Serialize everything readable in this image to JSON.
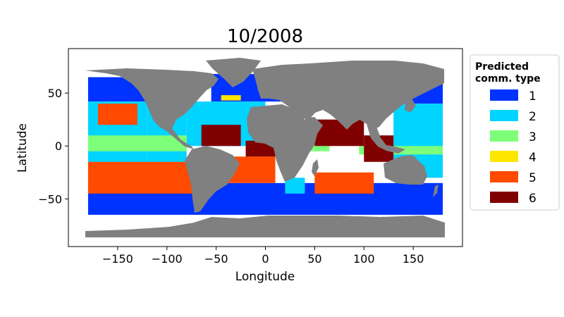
{
  "figure": {
    "title": "10/2008",
    "xlabel": "Longitude",
    "ylabel": "Latitude",
    "xlim": [
      -200,
      200
    ],
    "ylim": [
      -95,
      92
    ],
    "xticks": [
      -150,
      -100,
      -50,
      0,
      50,
      100,
      150
    ],
    "xtick_labels": [
      "−150",
      "−100",
      "−50",
      "0",
      "50",
      "100",
      "150"
    ],
    "yticks": [
      50,
      0,
      -50
    ],
    "ytick_labels": [
      "50",
      "0",
      "−50"
    ]
  },
  "legend": {
    "title_line1": "Predicted",
    "title_line2": "comm. type",
    "placement": "outside-right",
    "items": [
      {
        "label": "1",
        "color": "#0033ff"
      },
      {
        "label": "2",
        "color": "#00d4ff"
      },
      {
        "label": "3",
        "color": "#7dff7a"
      },
      {
        "label": "4",
        "color": "#ffe600"
      },
      {
        "label": "5",
        "color": "#ff4a00"
      },
      {
        "label": "6",
        "color": "#800000"
      }
    ]
  },
  "colors": {
    "land": "#808080",
    "unclassified": "#ffffff"
  },
  "chart_data": {
    "type": "heatmap",
    "title": "10/2008",
    "xlabel": "Longitude",
    "ylabel": "Latitude",
    "xlim": [
      -200,
      200
    ],
    "ylim": [
      -95,
      92
    ],
    "grid": false,
    "legend_placement": "outside-right",
    "classes": [
      "1",
      "2",
      "3",
      "4",
      "5",
      "6"
    ],
    "regions": [
      {
        "class": "1",
        "lon": [
          -180,
          180
        ],
        "lat": [
          -65,
          -35
        ]
      },
      {
        "class": "1",
        "lon": [
          -180,
          -120
        ],
        "lat": [
          42,
          65
        ]
      },
      {
        "class": "1",
        "lon": [
          -55,
          20
        ],
        "lat": [
          42,
          68
        ]
      },
      {
        "class": "1",
        "lon": [
          135,
          180
        ],
        "lat": [
          40,
          65
        ]
      },
      {
        "class": "2",
        "lon": [
          -180,
          -120
        ],
        "lat": [
          -35,
          42
        ]
      },
      {
        "class": "2",
        "lon": [
          -120,
          -80
        ],
        "lat": [
          -35,
          45
        ]
      },
      {
        "class": "2",
        "lon": [
          -80,
          0
        ],
        "lat": [
          0,
          42
        ]
      },
      {
        "class": "2",
        "lon": [
          130,
          180
        ],
        "lat": [
          -30,
          40
        ]
      },
      {
        "class": "2",
        "lon": [
          20,
          40
        ],
        "lat": [
          -45,
          -30
        ]
      },
      {
        "class": "3",
        "lon": [
          -180,
          -80
        ],
        "lat": [
          -5,
          10
        ]
      },
      {
        "class": "3",
        "lon": [
          45,
          65
        ],
        "lat": [
          -5,
          25
        ]
      },
      {
        "class": "3",
        "lon": [
          95,
          180
        ],
        "lat": [
          -8,
          0
        ]
      },
      {
        "class": "4",
        "lon": [
          -45,
          -25
        ],
        "lat": [
          43,
          48
        ]
      },
      {
        "class": "5",
        "lon": [
          -180,
          -70
        ],
        "lat": [
          -45,
          -15
        ]
      },
      {
        "class": "5",
        "lon": [
          -170,
          -130
        ],
        "lat": [
          20,
          40
        ]
      },
      {
        "class": "5",
        "lon": [
          -40,
          10
        ],
        "lat": [
          -35,
          -10
        ]
      },
      {
        "class": "5",
        "lon": [
          50,
          110
        ],
        "lat": [
          -45,
          -25
        ]
      },
      {
        "class": "6",
        "lon": [
          -65,
          -25
        ],
        "lat": [
          0,
          20
        ]
      },
      {
        "class": "6",
        "lon": [
          -20,
          20
        ],
        "lat": [
          -10,
          5
        ]
      },
      {
        "class": "6",
        "lon": [
          50,
          100
        ],
        "lat": [
          0,
          25
        ]
      },
      {
        "class": "6",
        "lon": [
          100,
          130
        ],
        "lat": [
          -15,
          10
        ]
      }
    ]
  }
}
